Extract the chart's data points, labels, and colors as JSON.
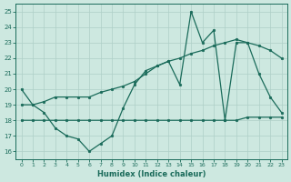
{
  "xlabel": "Humidex (Indice chaleur)",
  "xlim": [
    -0.5,
    23.5
  ],
  "ylim": [
    15.5,
    25.5
  ],
  "xticks": [
    0,
    1,
    2,
    3,
    4,
    5,
    6,
    7,
    8,
    9,
    10,
    11,
    12,
    13,
    14,
    15,
    16,
    17,
    18,
    19,
    20,
    21,
    22,
    23
  ],
  "yticks": [
    16,
    17,
    18,
    19,
    20,
    21,
    22,
    23,
    24,
    25
  ],
  "bg_color": "#cde8e0",
  "line_color": "#1a6b5a",
  "grid_color": "#aecfc7",
  "line1_x": [
    0,
    1,
    2,
    3,
    4,
    5,
    6,
    7,
    8,
    9,
    10,
    11,
    12,
    13,
    14,
    15,
    16,
    17,
    18,
    19,
    20,
    21,
    22,
    23
  ],
  "line1_y": [
    20.0,
    19.0,
    18.5,
    17.5,
    17.0,
    16.8,
    16.0,
    16.5,
    17.0,
    18.8,
    20.3,
    21.2,
    21.5,
    21.8,
    20.3,
    25.0,
    23.0,
    23.8,
    18.0,
    23.0,
    23.0,
    21.0,
    19.5,
    18.5
  ],
  "line2_x": [
    0,
    1,
    2,
    3,
    4,
    5,
    6,
    7,
    8,
    9,
    10,
    11,
    12,
    13,
    14,
    15,
    16,
    17,
    18,
    19,
    20,
    21,
    22,
    23
  ],
  "line2_y": [
    19.0,
    19.0,
    19.2,
    19.5,
    19.5,
    19.5,
    19.5,
    19.8,
    20.0,
    20.2,
    20.5,
    21.0,
    21.5,
    21.8,
    22.0,
    22.3,
    22.5,
    22.8,
    23.0,
    23.2,
    23.0,
    22.8,
    22.5,
    22.0
  ],
  "line3_x": [
    0,
    1,
    2,
    3,
    4,
    5,
    6,
    7,
    8,
    9,
    10,
    11,
    12,
    13,
    14,
    15,
    16,
    17,
    18,
    19,
    20,
    21,
    22,
    23
  ],
  "line3_y": [
    18.0,
    18.0,
    18.0,
    18.0,
    18.0,
    18.0,
    18.0,
    18.0,
    18.0,
    18.0,
    18.0,
    18.0,
    18.0,
    18.0,
    18.0,
    18.0,
    18.0,
    18.0,
    18.0,
    18.0,
    18.2,
    18.2,
    18.2,
    18.2
  ]
}
